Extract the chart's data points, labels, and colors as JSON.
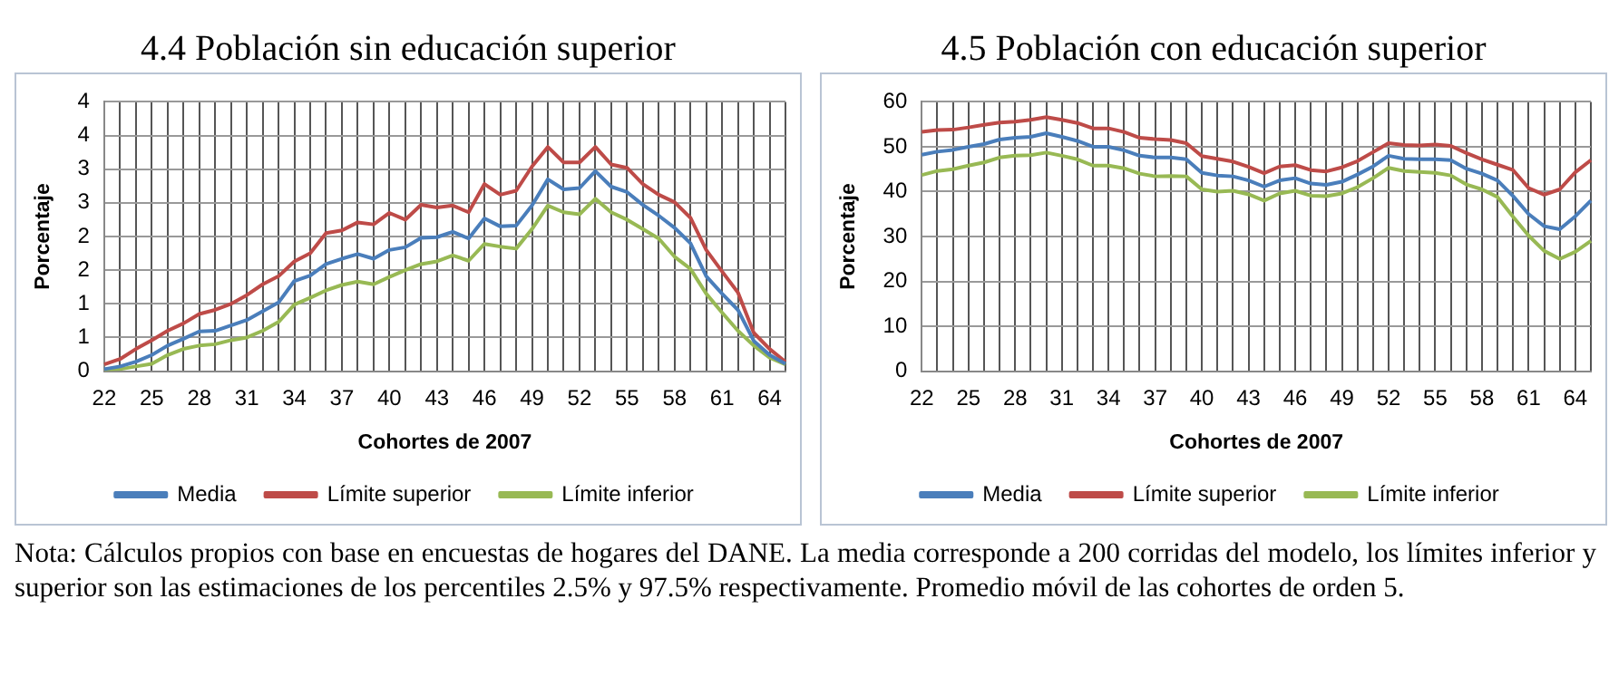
{
  "chart_data": [
    {
      "type": "line",
      "title": "4.4 Población sin educación superior",
      "xlabel": "Cohortes de 2007",
      "ylabel": "Porcentaje",
      "categories": [
        "22",
        null,
        null,
        "25",
        null,
        null,
        "28",
        null,
        null,
        "31",
        null,
        null,
        "34",
        null,
        null,
        "37",
        null,
        null,
        "40",
        null,
        null,
        "43",
        null,
        null,
        "46",
        null,
        null,
        "49",
        null,
        null,
        "52",
        null,
        null,
        "55",
        null,
        null,
        "58",
        null,
        null,
        "61",
        null,
        null,
        "64",
        null
      ],
      "ylim": [
        0,
        4
      ],
      "yticks": [
        0,
        {
          "value": 0.5,
          "label": "1"
        },
        1,
        {
          "value": 1.5,
          "label": "2"
        },
        2,
        {
          "value": 2.5,
          "label": "3"
        },
        3,
        {
          "value": 3.5,
          "label": "4"
        },
        4
      ],
      "grid": true,
      "legend": "bottom",
      "marker": "none",
      "line_style": "solid",
      "series": [
        {
          "name": "Media",
          "color": "#4a7ebb",
          "values": [
            0.03,
            0.07,
            0.14,
            0.24,
            0.38,
            0.48,
            0.59,
            0.6,
            0.68,
            0.76,
            0.89,
            1.02,
            1.34,
            1.42,
            1.59,
            1.67,
            1.74,
            1.67,
            1.8,
            1.84,
            1.98,
            1.99,
            2.07,
            1.97,
            2.27,
            2.15,
            2.16,
            2.46,
            2.85,
            2.7,
            2.72,
            2.97,
            2.74,
            2.66,
            2.47,
            2.31,
            2.13,
            1.9,
            1.41,
            1.15,
            0.91,
            0.45,
            0.24,
            0.11
          ]
        },
        {
          "name": "Límite superior",
          "color": "#be4b48",
          "values": [
            0.1,
            0.18,
            0.33,
            0.46,
            0.6,
            0.71,
            0.85,
            0.91,
            1.0,
            1.13,
            1.29,
            1.41,
            1.63,
            1.75,
            2.05,
            2.09,
            2.21,
            2.18,
            2.35,
            2.25,
            2.47,
            2.43,
            2.46,
            2.36,
            2.78,
            2.62,
            2.68,
            3.04,
            3.33,
            3.1,
            3.1,
            3.33,
            3.07,
            3.02,
            2.78,
            2.62,
            2.51,
            2.28,
            1.8,
            1.48,
            1.17,
            0.57,
            0.33,
            0.14
          ]
        },
        {
          "name": "Límite inferior",
          "color": "#98b954",
          "values": [
            0.02,
            0.03,
            0.07,
            0.11,
            0.24,
            0.33,
            0.38,
            0.4,
            0.46,
            0.5,
            0.6,
            0.73,
            0.99,
            1.09,
            1.2,
            1.28,
            1.33,
            1.29,
            1.4,
            1.5,
            1.59,
            1.63,
            1.72,
            1.64,
            1.89,
            1.85,
            1.82,
            2.11,
            2.46,
            2.36,
            2.33,
            2.56,
            2.36,
            2.25,
            2.11,
            1.97,
            1.7,
            1.52,
            1.15,
            0.87,
            0.6,
            0.38,
            0.2,
            0.1
          ]
        }
      ],
      "annotations": [
        "Nota: Cálculos propios con base en encuestas de hogares del DANE. La media corresponde a 200 corridas del modelo, los límites inferior y superior son las estimaciones de los percentiles 2.5% y 97.5% respectivamente. Promedio móvil de las cohortes de orden 5."
      ]
    },
    {
      "type": "line",
      "title": "4.5 Población con educación superior",
      "xlabel": "Cohortes de 2007",
      "ylabel": "Porcentaje",
      "categories": [
        "22",
        null,
        null,
        "25",
        null,
        null,
        "28",
        null,
        null,
        "31",
        null,
        null,
        "34",
        null,
        null,
        "37",
        null,
        null,
        "40",
        null,
        null,
        "43",
        null,
        null,
        "46",
        null,
        null,
        "49",
        null,
        null,
        "52",
        null,
        null,
        "55",
        null,
        null,
        "58",
        null,
        null,
        "61",
        null,
        null,
        "64",
        null
      ],
      "ylim": [
        0,
        60
      ],
      "yticks": [
        0,
        10,
        20,
        30,
        40,
        50,
        60
      ],
      "grid": true,
      "legend": "bottom",
      "marker": "none",
      "line_style": "solid",
      "series": [
        {
          "name": "Media",
          "color": "#4a7ebb",
          "values": [
            48.2,
            48.9,
            49.3,
            50,
            50.6,
            51.6,
            52,
            52.2,
            53,
            52.2,
            51.3,
            50,
            50,
            49.2,
            48,
            47.6,
            47.6,
            47.2,
            44.2,
            43.6,
            43.4,
            42.5,
            41.1,
            42.5,
            43,
            41.8,
            41.5,
            42.2,
            43.8,
            45.6,
            48,
            47.3,
            47.2,
            47.2,
            47,
            45.1,
            44,
            42.5,
            39,
            35,
            32.3,
            31.6,
            34.5,
            38
          ]
        },
        {
          "name": "Límite superior",
          "color": "#be4b48",
          "values": [
            53.3,
            53.7,
            53.8,
            54.3,
            54.9,
            55.4,
            55.6,
            56,
            56.6,
            56,
            55.3,
            54.1,
            54.1,
            53.3,
            52,
            51.7,
            51.5,
            50.8,
            47.9,
            47.3,
            46.7,
            45.5,
            44.1,
            45.6,
            45.9,
            44.8,
            44.5,
            45.4,
            46.8,
            48.8,
            50.8,
            50.4,
            50.3,
            50.5,
            50.2,
            48.6,
            47.2,
            46,
            44.8,
            40.8,
            39.3,
            40.5,
            44.3,
            47
          ]
        },
        {
          "name": "Límite inferior",
          "color": "#98b954",
          "values": [
            43.7,
            44.6,
            45,
            45.8,
            46.5,
            47.6,
            48,
            48.1,
            48.7,
            48,
            47.2,
            45.8,
            45.8,
            45.2,
            44,
            43.4,
            43.5,
            43.4,
            40.5,
            40,
            40.2,
            39.4,
            38,
            39.6,
            40.2,
            39.1,
            39,
            39.6,
            41,
            43,
            45.3,
            44.6,
            44.4,
            44.2,
            43.6,
            41.6,
            40.5,
            38.8,
            34.4,
            30.2,
            26.8,
            25,
            26.6,
            29
          ]
        }
      ]
    }
  ]
}
